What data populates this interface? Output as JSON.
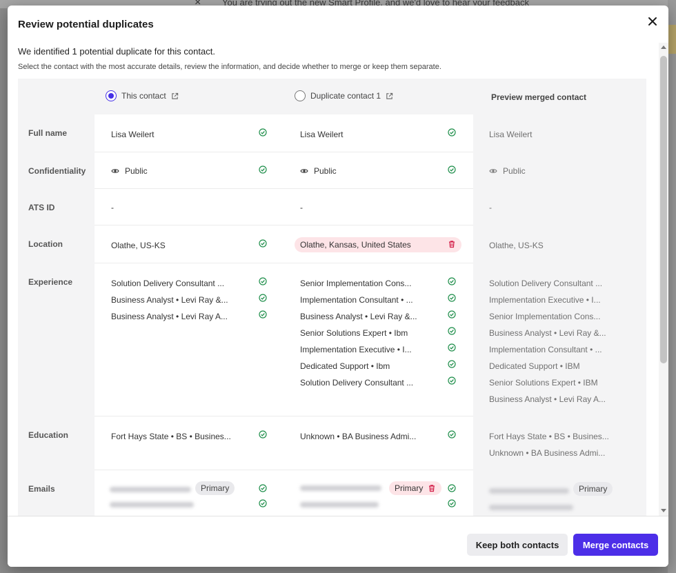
{
  "background": {
    "banner_text": "You are trying out the new Smart Profile, and we'd love to hear your feedback"
  },
  "modal": {
    "title": "Review potential duplicates",
    "intro": "We identified 1 potential duplicate for this contact.",
    "instructions": "Select the contact with the most accurate details, review the information, and decide whether to merge or keep them separate."
  },
  "columns": {
    "this_contact": "This contact",
    "duplicate": "Duplicate contact 1",
    "preview": "Preview merged contact"
  },
  "rows": {
    "full_name": {
      "label": "Full name",
      "this": "Lisa Weilert",
      "dup": "Lisa Weilert",
      "preview": "Lisa Weilert"
    },
    "confidentiality": {
      "label": "Confidentiality",
      "this": "Public",
      "dup": "Public",
      "preview": "Public"
    },
    "ats_id": {
      "label": "ATS ID",
      "this": "-",
      "dup": "-",
      "preview": "-"
    },
    "location": {
      "label": "Location",
      "this": "Olathe, US-KS",
      "dup": "Olathe, Kansas, United States",
      "preview": "Olathe, US-KS"
    },
    "experience": {
      "label": "Experience",
      "this": [
        "Solution Delivery Consultant ...",
        "Business Analyst • Levi Ray &...",
        "Business Analyst • Levi Ray A..."
      ],
      "dup": [
        "Senior Implementation Cons...",
        "Implementation Consultant • ...",
        "Business Analyst • Levi Ray &...",
        "Senior Solutions Expert • Ibm",
        "Implementation Executive • I...",
        "Dedicated Support • Ibm",
        "Solution Delivery Consultant ..."
      ],
      "preview": [
        "Solution Delivery Consultant ...",
        "Implementation Executive • I...",
        "Senior Implementation Cons...",
        "Business Analyst • Levi Ray &...",
        "Implementation Consultant • ...",
        "Dedicated Support • IBM",
        "Senior Solutions Expert • IBM",
        "Business Analyst • Levi Ray A..."
      ]
    },
    "education": {
      "label": "Education",
      "this": [
        "Fort Hays State • BS • Busines..."
      ],
      "dup": [
        "Unknown • BA Business Admi..."
      ],
      "preview": [
        "Fort Hays State • BS • Busines...",
        "Unknown • BA Business Admi..."
      ]
    },
    "emails": {
      "label": "Emails",
      "primary": "Primary"
    }
  },
  "footer": {
    "keep_label": "Keep both contacts",
    "merge_label": "Merge contacts"
  },
  "colors": {
    "accent": "#4c2ee8",
    "check_green": "#1e8e4a",
    "delete_red": "#d3204a",
    "conflict_bg": "#fde4e7"
  },
  "icons": {
    "selected_radio": "radio-selected-icon",
    "unselected_radio": "radio-unselected-icon",
    "external": "external-link-icon",
    "check": "check-circle-icon",
    "eye": "eye-icon",
    "trash": "trash-icon",
    "close": "close-icon"
  }
}
